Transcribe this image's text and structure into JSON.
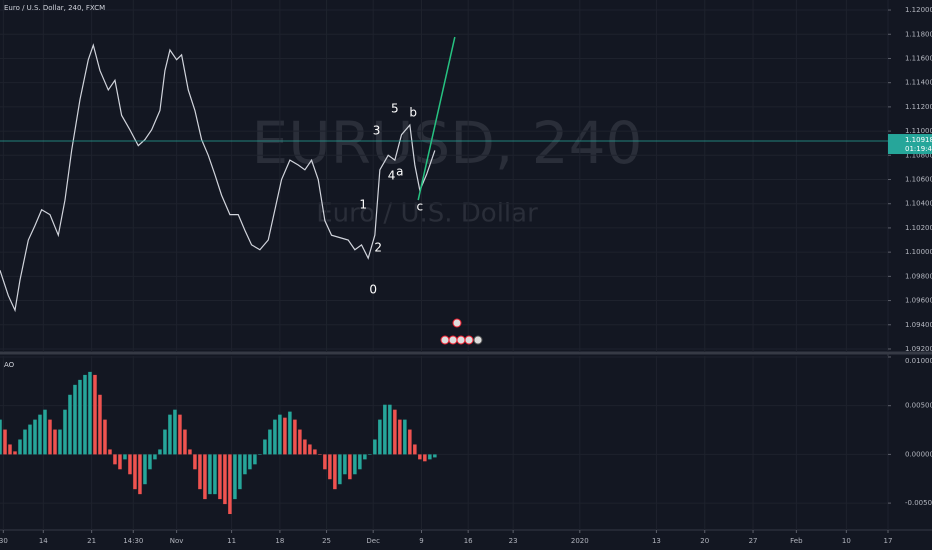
{
  "chart_data": [
    {
      "type": "line",
      "title": "Euro / U.S. Dollar, 240, FXCM",
      "watermark": "EURUSD, 240",
      "watermark_subtitle": "Euro / U.S. Dollar",
      "x": [
        0,
        5,
        9,
        12,
        17,
        21,
        25,
        30,
        35,
        39,
        43,
        48,
        53,
        56,
        60,
        65,
        69,
        73,
        78,
        83,
        87,
        91,
        96,
        99,
        102,
        106,
        109,
        113,
        117,
        121,
        125,
        129,
        133,
        138,
        143,
        147,
        151,
        156,
        161,
        165,
        169,
        174,
        179,
        183,
        187,
        191,
        195,
        199,
        204,
        209,
        213,
        217,
        221,
        225,
        228,
        233,
        237,
        241,
        246,
        249,
        252,
        256,
        261
      ],
      "series": [
        {
          "name": "EURUSD",
          "color": "#d1d4dc",
          "values": [
            1.0985,
            1.0964,
            1.0952,
            1.0977,
            1.101,
            1.1022,
            1.1035,
            1.1031,
            1.1014,
            1.1043,
            1.1084,
            1.1126,
            1.1159,
            1.1171,
            1.115,
            1.1134,
            1.1142,
            1.1113,
            1.1101,
            1.1088,
            1.1093,
            1.1101,
            1.1117,
            1.115,
            1.1167,
            1.1159,
            1.1163,
            1.1134,
            1.1117,
            1.1093,
            1.108,
            1.1064,
            1.1047,
            1.1031,
            1.1031,
            1.1018,
            1.1006,
            1.1002,
            1.101,
            1.1035,
            1.106,
            1.1076,
            1.1072,
            1.1068,
            1.1076,
            1.106,
            1.1026,
            1.1014,
            1.1012,
            1.101,
            1.1002,
            1.1006,
            1.0995,
            1.1014,
            1.1068,
            1.108,
            1.1076,
            1.1097,
            1.1105,
            1.1072,
            1.1051,
            1.1064,
            1.1084
          ]
        }
      ],
      "trend_line": {
        "color": "#26c281",
        "x": [
          251,
          273
        ],
        "y": [
          1.1043,
          1.11777
        ]
      },
      "annotations": [
        {
          "text": "0",
          "x": 224,
          "y": 1.09686
        },
        {
          "text": "1",
          "x": 218,
          "y": 1.10388
        },
        {
          "text": "2",
          "x": 227,
          "y": 1.10033
        },
        {
          "text": "3",
          "x": 226,
          "y": 1.11
        },
        {
          "text": "4",
          "x": 235,
          "y": 1.10628
        },
        {
          "text": "a",
          "x": 240,
          "y": 1.10661
        },
        {
          "text": "5",
          "x": 237,
          "y": 1.11182
        },
        {
          "text": "b",
          "x": 248,
          "y": 1.11149
        },
        {
          "text": "c",
          "x": 252,
          "y": 1.10372
        }
      ],
      "last_price": {
        "value": 1.10918,
        "label": "1.10918"
      },
      "countdown": "01:19:44",
      "last_price_color": "#26a69a",
      "xlim": [
        0,
        533
      ],
      "ylim": [
        1.09175,
        1.12083
      ],
      "yticks": [
        {
          "value": 1.12,
          "label": "1.12000"
        },
        {
          "value": 1.118,
          "label": "1.11800"
        },
        {
          "value": 1.116,
          "label": "1.11600"
        },
        {
          "value": 1.114,
          "label": "1.11400"
        },
        {
          "value": 1.112,
          "label": "1.11200"
        },
        {
          "value": 1.11,
          "label": "1.11000"
        },
        {
          "value": 1.108,
          "label": "1.10800"
        },
        {
          "value": 1.106,
          "label": "1.10600"
        },
        {
          "value": 1.104,
          "label": "1.10400"
        },
        {
          "value": 1.102,
          "label": "1.10200"
        },
        {
          "value": 1.1,
          "label": "1.10000"
        },
        {
          "value": 1.098,
          "label": "1.09800"
        },
        {
          "value": 1.096,
          "label": "1.09600"
        },
        {
          "value": 1.094,
          "label": "1.09400"
        },
        {
          "value": 1.092,
          "label": "1.09200"
        }
      ],
      "grid": true
    },
    {
      "type": "bar",
      "title": "AO",
      "up_color": "#26a69a",
      "down_color": "#ef5350",
      "x": [
        0,
        3,
        6,
        9,
        12,
        15,
        18,
        21,
        24,
        27,
        30,
        33,
        36,
        39,
        42,
        45,
        48,
        51,
        54,
        57,
        60,
        63,
        66,
        69,
        72,
        75,
        78,
        81,
        84,
        87,
        90,
        93,
        96,
        99,
        102,
        105,
        108,
        111,
        114,
        117,
        120,
        123,
        126,
        129,
        132,
        135,
        138,
        141,
        144,
        147,
        150,
        153,
        156,
        159,
        162,
        165,
        168,
        171,
        174,
        177,
        180,
        183,
        186,
        189,
        192,
        195,
        198,
        201,
        204,
        207,
        210,
        213,
        216,
        219,
        222,
        225,
        228,
        231,
        234,
        237,
        240,
        243,
        246,
        249,
        252,
        255,
        258,
        261
      ],
      "values": [
        0.00357,
        0.00255,
        0.00102,
        0.00031,
        0.00153,
        0.00255,
        0.00306,
        0.00357,
        0.00408,
        0.00459,
        0.00357,
        0.00255,
        0.00255,
        0.00459,
        0.00612,
        0.00714,
        0.00765,
        0.00816,
        0.00847,
        0.00816,
        0.00612,
        0.00357,
        0.00051,
        -0.00102,
        -0.00153,
        -0.00051,
        -0.00204,
        -0.00357,
        -0.00408,
        -0.00306,
        -0.00153,
        -0.00051,
        0.00051,
        0.00255,
        0.00408,
        0.00459,
        0.00408,
        0.00255,
        0.00051,
        -0.00153,
        -0.00357,
        -0.00459,
        -0.00408,
        -0.00408,
        -0.00459,
        -0.0051,
        -0.00612,
        -0.00459,
        -0.00357,
        -0.00204,
        -0.00153,
        -0.00102,
        0,
        0.00153,
        0.00255,
        0.00357,
        0.00408,
        0.00377,
        0.00439,
        0.00357,
        0.00255,
        0.00153,
        0.00102,
        0.00051,
        0,
        -0.00153,
        -0.00255,
        -0.00357,
        -0.00306,
        -0.00204,
        -0.00255,
        -0.00204,
        -0.00153,
        -0.00051,
        0,
        0.00153,
        0.00357,
        0.0051,
        0.0051,
        0.00459,
        0.00357,
        0.00357,
        0.00255,
        0.00102,
        -0.00051,
        -0.00071,
        -0.00051,
        -0.00031
      ],
      "xlim": [
        0,
        533
      ],
      "ylim": [
        -0.00776,
        0.0101
      ],
      "yticks": [
        {
          "value": 0.01,
          "label": "0.01000"
        },
        {
          "value": 0.005,
          "label": "0.00500"
        },
        {
          "value": 0,
          "label": "0.00000"
        },
        {
          "value": -0.005,
          "label": "-0.00500"
        }
      ],
      "xticks": [
        {
          "value": 2,
          "label": "30"
        },
        {
          "value": 26,
          "label": "14"
        },
        {
          "value": 55,
          "label": "21"
        },
        {
          "value": 80,
          "label": "14:30"
        },
        {
          "value": 106,
          "label": "Nov"
        },
        {
          "value": 139,
          "label": "11"
        },
        {
          "value": 168,
          "label": "18"
        },
        {
          "value": 196,
          "label": "25"
        },
        {
          "value": 224,
          "label": "Dec"
        },
        {
          "value": 253,
          "label": "9"
        },
        {
          "value": 281,
          "label": "16"
        },
        {
          "value": 308,
          "label": "23"
        },
        {
          "value": 348,
          "label": "2020"
        },
        {
          "value": 394,
          "label": "13"
        },
        {
          "value": 423,
          "label": "20"
        },
        {
          "value": 452,
          "label": "27"
        },
        {
          "value": 478,
          "label": "Feb"
        },
        {
          "value": 508,
          "label": "10"
        },
        {
          "value": 533,
          "label": "17"
        }
      ],
      "grid": true
    }
  ]
}
